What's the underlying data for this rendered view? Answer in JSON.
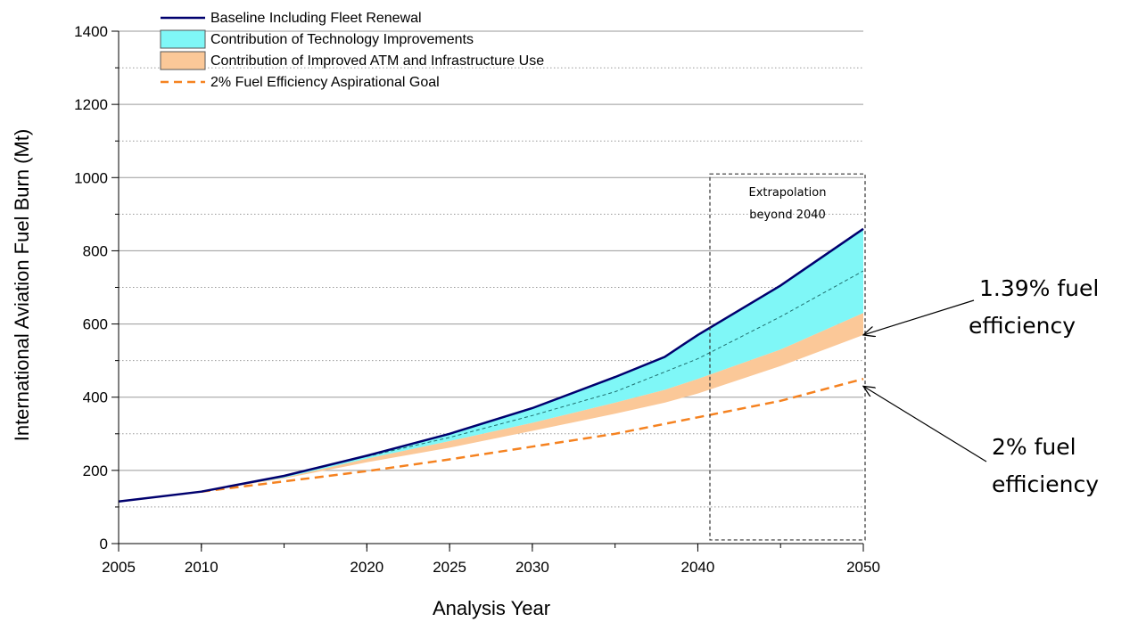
{
  "chart_data": {
    "type": "area",
    "xlabel": "Analysis Year",
    "ylabel": "International Aviation Fuel Burn (Mt)",
    "xlim": [
      2005,
      2050
    ],
    "ylim": [
      0,
      1400
    ],
    "x_ticks": [
      2005,
      2010,
      2020,
      2025,
      2030,
      2040,
      2050
    ],
    "y_ticks": [
      0,
      200,
      400,
      600,
      800,
      1000,
      1200,
      1400
    ],
    "grid": {
      "major_y": true,
      "minor_y_dotted": true
    },
    "legend_position": "top-left",
    "colors": {
      "baseline": "#00006e",
      "technology": "#7ff7f7",
      "atm": "#fbc898",
      "goal": "#f58220",
      "dashed_inner": "#1f6f6f"
    },
    "series": [
      {
        "name": "Baseline Including Fleet Renewal",
        "kind": "line",
        "x": [
          2005,
          2010,
          2015,
          2020,
          2025,
          2030,
          2035,
          2038,
          2040,
          2045,
          2050
        ],
        "y": [
          115,
          142,
          185,
          240,
          300,
          370,
          455,
          510,
          570,
          705,
          860
        ]
      },
      {
        "name": "Contribution of Technology Improvements",
        "kind": "band",
        "x": [
          2010,
          2015,
          2020,
          2025,
          2030,
          2035,
          2038,
          2040,
          2045,
          2050
        ],
        "upper": [
          142,
          185,
          240,
          300,
          370,
          455,
          510,
          570,
          705,
          860
        ],
        "lower": [
          142,
          180,
          232,
          280,
          330,
          385,
          420,
          450,
          530,
          630
        ]
      },
      {
        "name": "Contribution of Improved ATM and Infrastructure Use",
        "kind": "band",
        "x": [
          2010,
          2015,
          2020,
          2025,
          2030,
          2035,
          2038,
          2040,
          2045,
          2050
        ],
        "upper": [
          142,
          180,
          232,
          280,
          330,
          385,
          420,
          450,
          530,
          630
        ],
        "lower": [
          142,
          178,
          222,
          262,
          308,
          355,
          385,
          410,
          485,
          570
        ]
      },
      {
        "name": "2% Fuel Efficiency Aspirational Goal",
        "kind": "dashed-line",
        "x": [
          2010,
          2015,
          2020,
          2025,
          2030,
          2035,
          2040,
          2045,
          2050
        ],
        "y": [
          142,
          170,
          198,
          230,
          265,
          300,
          345,
          390,
          450
        ]
      }
    ],
    "inner_dashed": {
      "x": [
        2020,
        2025,
        2030,
        2035,
        2040,
        2045,
        2050
      ],
      "y": [
        238,
        290,
        350,
        415,
        505,
        620,
        745
      ]
    },
    "extrapolation_box": {
      "x_range": [
        2041,
        2050
      ],
      "y_range": [
        5,
        1010
      ],
      "label_line1": "Extrapolation",
      "label_line2": "beyond 2040"
    },
    "annotations": [
      {
        "line1": "1.39% fuel",
        "line2": "efficiency",
        "target_x": 2050,
        "target_y": 570
      },
      {
        "line1": "2% fuel",
        "line2": "efficiency",
        "target_x": 2050,
        "target_y": 430
      }
    ]
  }
}
